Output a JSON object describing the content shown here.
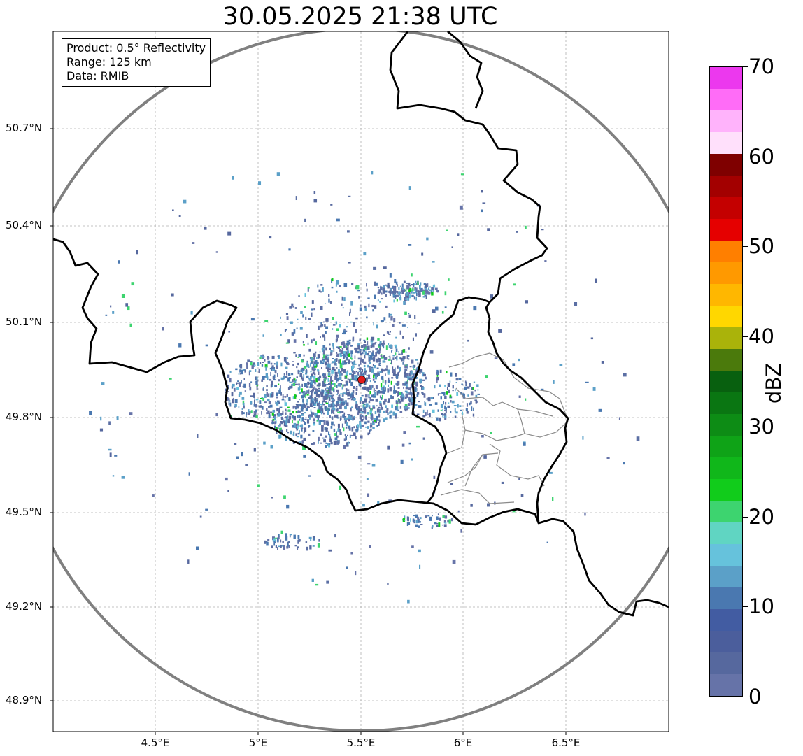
{
  "title": "30.05.2025 21:38 UTC",
  "info": [
    "Product: 0.5° Reflectivity",
    "Range: 125 km",
    "Data: RMIB"
  ],
  "lat_labels": [
    "50.7°N",
    "50.4°N",
    "50.1°N",
    "49.8°N",
    "49.5°N",
    "49.2°N",
    "48.9°N"
  ],
  "lon_labels": [
    "4.5°E",
    "5°E",
    "5.5°E",
    "6°E",
    "6.5°E"
  ],
  "radar_site": {
    "lon": 5.505,
    "lat": 49.914,
    "color": "#e31a1c"
  },
  "range_ring_color": "#808080",
  "colorbar": {
    "label": "dBZ",
    "ticks": [
      "0",
      "10",
      "20",
      "30",
      "40",
      "50",
      "60",
      "70"
    ],
    "colors": [
      "#6673a8",
      "#56689e",
      "#4b5e9c",
      "#425ca2",
      "#4a78b0",
      "#5ba0c8",
      "#66c2dc",
      "#60d5c2",
      "#3dd46f",
      "#11cc1b",
      "#10b71a",
      "#0fa317",
      "#0d8c15",
      "#0a7612",
      "#08600f",
      "#4b7a0c",
      "#aab30a",
      "#ffd700",
      "#ffb700",
      "#ff9900",
      "#ff7f00",
      "#e50000",
      "#c40000",
      "#a30000",
      "#7f0000",
      "#ffe0fb",
      "#ffb3fb",
      "#ff6cf7",
      "#ec38ee"
    ]
  }
}
